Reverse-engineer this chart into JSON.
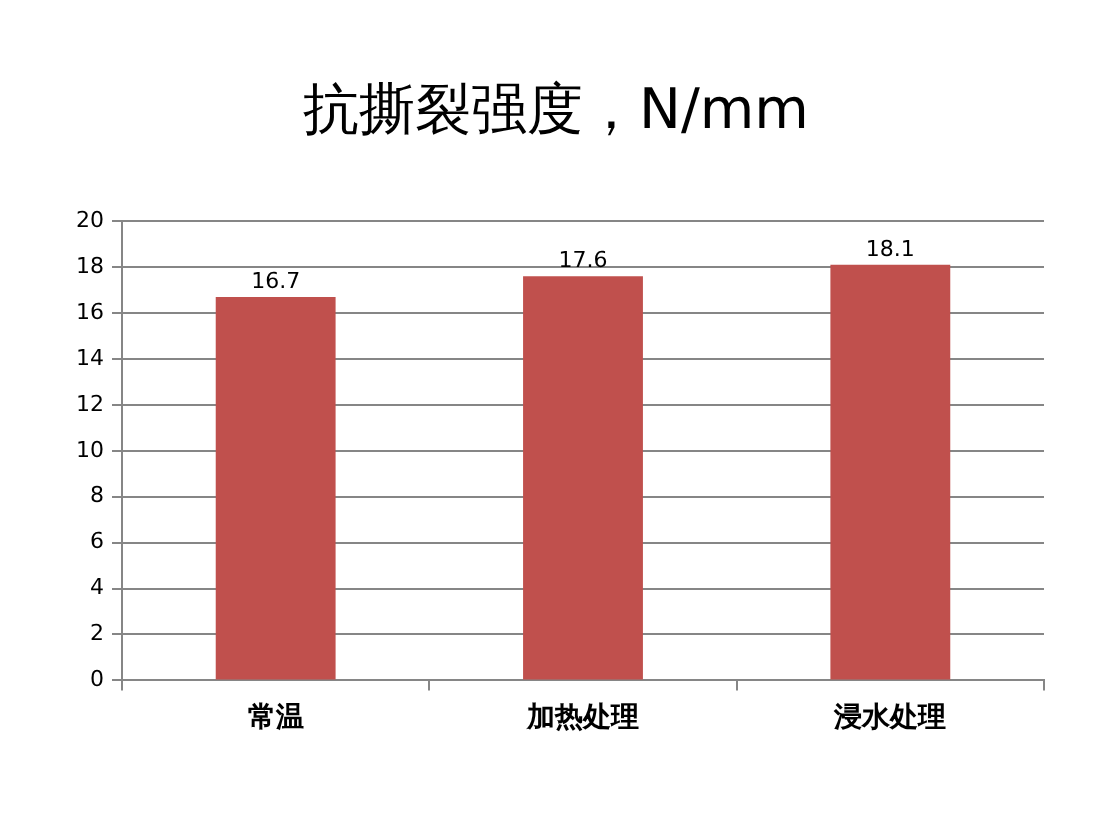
{
  "chart_data": {
    "type": "bar",
    "title": "抗撕裂强度，N/mm",
    "categories": [
      "常温",
      "加热处理",
      "浸水处理"
    ],
    "values": [
      16.7,
      17.6,
      18.1
    ],
    "color": "#c0504d",
    "ylim": [
      0,
      20
    ],
    "yticks": [
      0,
      2,
      4,
      6,
      8,
      10,
      12,
      14,
      16,
      18,
      20
    ],
    "grid": "y",
    "data_labels": true,
    "legend": false
  }
}
